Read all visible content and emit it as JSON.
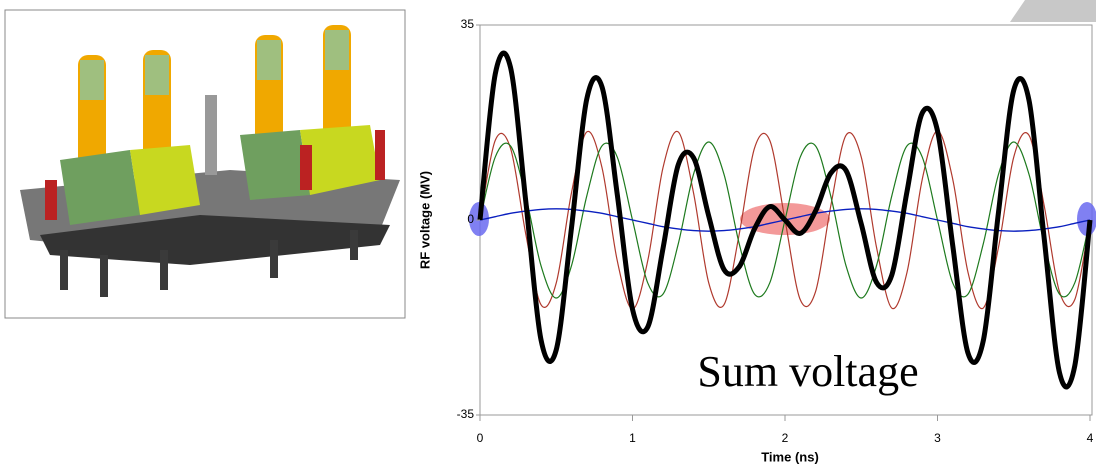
{
  "chart_data": {
    "type": "line",
    "x_label": "Time (ns)",
    "y_label": "RF voltage (MV)",
    "annotation": "Sum voltage",
    "x": [
      0,
      0.1,
      0.2,
      0.3,
      0.4,
      0.5,
      0.6,
      0.7,
      0.8,
      0.9,
      1,
      1.1,
      1.2,
      1.3,
      1.4,
      1.5,
      1.6,
      1.7,
      1.8,
      1.9,
      2,
      2.1,
      2.2,
      2.3,
      2.4,
      2.5,
      2.6,
      2.7,
      2.8,
      2.9,
      3,
      3.1,
      3.2,
      3.3,
      3.4,
      3.5,
      3.6,
      3.7,
      3.8,
      3.9,
      4
    ],
    "series": [
      {
        "color": "#b03a2e",
        "values": [
          0,
          14.3,
          12.9,
          -2.5,
          -15.2,
          -11.3,
          4.9,
          15.8,
          9.4,
          -7.3,
          -16,
          -7.3,
          9.4,
          15.8,
          4.9,
          -11.3,
          -15.2,
          -2.5,
          12.9,
          14.3,
          0,
          -14.3,
          -12.9,
          2.5,
          15.2,
          11.3,
          -4.9,
          -15.8,
          -9.4,
          7.3,
          16,
          7.3,
          -9.4,
          -15.8,
          -4.9,
          11.3,
          15.2,
          2.5,
          -12.9,
          -14.3,
          0
        ]
      },
      {
        "color": "#1e7a1e",
        "values": [
          0,
          11.3,
          13.3,
          4.3,
          -8.2,
          -14,
          -8.2,
          4.3,
          13.3,
          11.3,
          0,
          -11.3,
          -13.3,
          -4.3,
          8.2,
          14,
          8.2,
          -4.3,
          -13.3,
          -11.3,
          0,
          11.3,
          13.3,
          4.3,
          -8.2,
          -14,
          -8.2,
          4.3,
          13.3,
          11.3,
          0,
          -11.3,
          -13.3,
          -4.3,
          8.2,
          14,
          8.2,
          -4.3,
          -13.3,
          -11.3,
          0
        ]
      },
      {
        "color": "#0a1fbf",
        "values": [
          0,
          0.6,
          1.2,
          1.6,
          1.9,
          2,
          1.9,
          1.6,
          1.2,
          0.6,
          0,
          -0.6,
          -1.2,
          -1.6,
          -1.9,
          -2,
          -1.9,
          -1.6,
          -1.2,
          -0.6,
          0,
          0.6,
          1.2,
          1.6,
          1.9,
          2,
          1.9,
          1.6,
          1.2,
          0.6,
          0,
          -0.6,
          -1.2,
          -1.6,
          -1.9,
          -2,
          -1.9,
          -1.6,
          -1.2,
          -0.6,
          0
        ]
      },
      {
        "color": "#000000",
        "values": [
          0,
          26.2,
          27.4,
          3.4,
          -21.5,
          -23.3,
          -1.4,
          21.7,
          23.9,
          4.6,
          -16,
          -19.2,
          -5.1,
          9.9,
          11.2,
          0.7,
          -8.9,
          -8.4,
          -1.6,
          2.4,
          0,
          -2.4,
          1.6,
          8.4,
          8.9,
          -0.7,
          -11.2,
          -9.9,
          5.1,
          19.2,
          16,
          -4.6,
          -23.9,
          -21.7,
          1.4,
          23.3,
          21.5,
          -3.4,
          -27.4,
          -26.2,
          0
        ]
      }
    ],
    "line_widths": [
      1.2,
      1.2,
      1.4,
      5
    ],
    "xlim": [
      0,
      4
    ],
    "ylim": [
      -35,
      35
    ],
    "xticks": [
      0,
      1,
      2,
      3,
      4
    ],
    "yticks": [
      -35,
      0,
      35
    ]
  }
}
